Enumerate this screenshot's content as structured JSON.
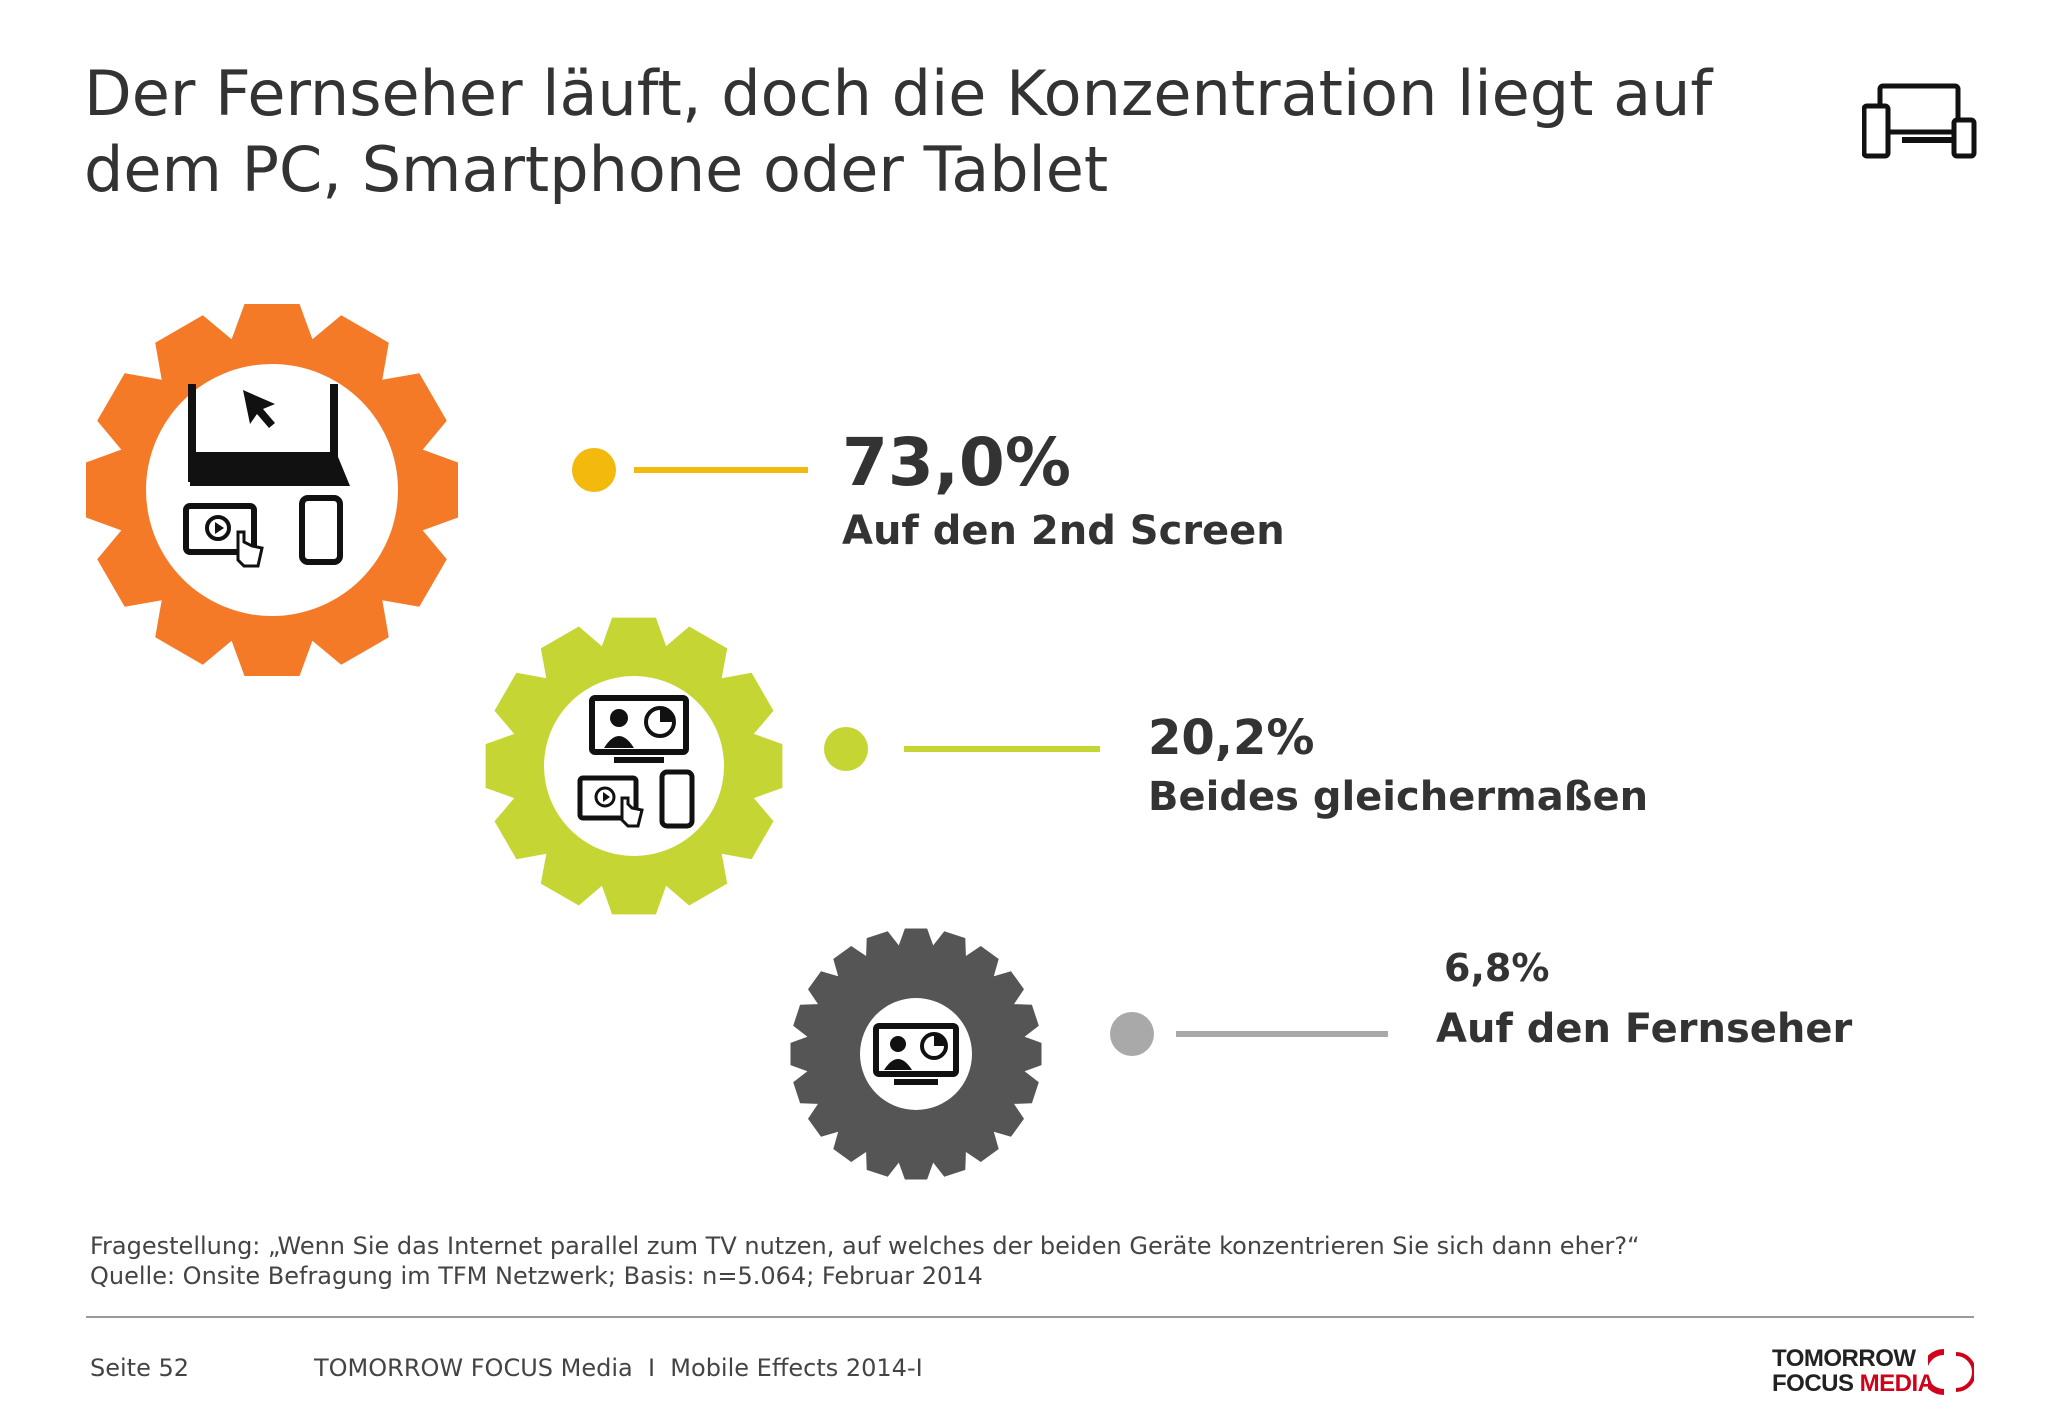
{
  "title": "Der Fernseher läuft, doch die Konzentration liegt auf dem PC, Smartphone oder Tablet",
  "header_icon": "devices-icon",
  "chart_data": {
    "type": "bar",
    "categories": [
      "Auf den 2nd Screen",
      "Beides gleichermaßen",
      "Auf den Fernseher"
    ],
    "values": [
      73.0,
      20.2,
      6.8
    ],
    "value_labels": [
      "73,0%",
      "20,2%",
      "6,8%"
    ],
    "unit": "%",
    "colors": [
      "#f47a28",
      "#c5d634",
      "#555555"
    ],
    "dot_colors": [
      "#f3b90c",
      "#c5d634",
      "#a9a9a9"
    ],
    "icons": [
      "laptop-tablet-phone-icon",
      "monitor-tablet-phone-icon",
      "monitor-icon"
    ]
  },
  "notes": {
    "question": "Fragestellung: „Wenn Sie das Internet parallel zum TV nutzen, auf welches der beiden Geräte konzentrieren Sie sich dann eher?“",
    "source": "Quelle: Onsite Befragung im TFM Netzwerk; Basis: n=5.064; Februar 2014"
  },
  "footer": {
    "page": "Seite 52",
    "publisher": "TOMORROW FOCUS Media  I  Mobile Effects 2014-I"
  },
  "brand": {
    "line1": "TOMORROW",
    "line2a": "FOCUS ",
    "line2b": "MEDIA"
  }
}
